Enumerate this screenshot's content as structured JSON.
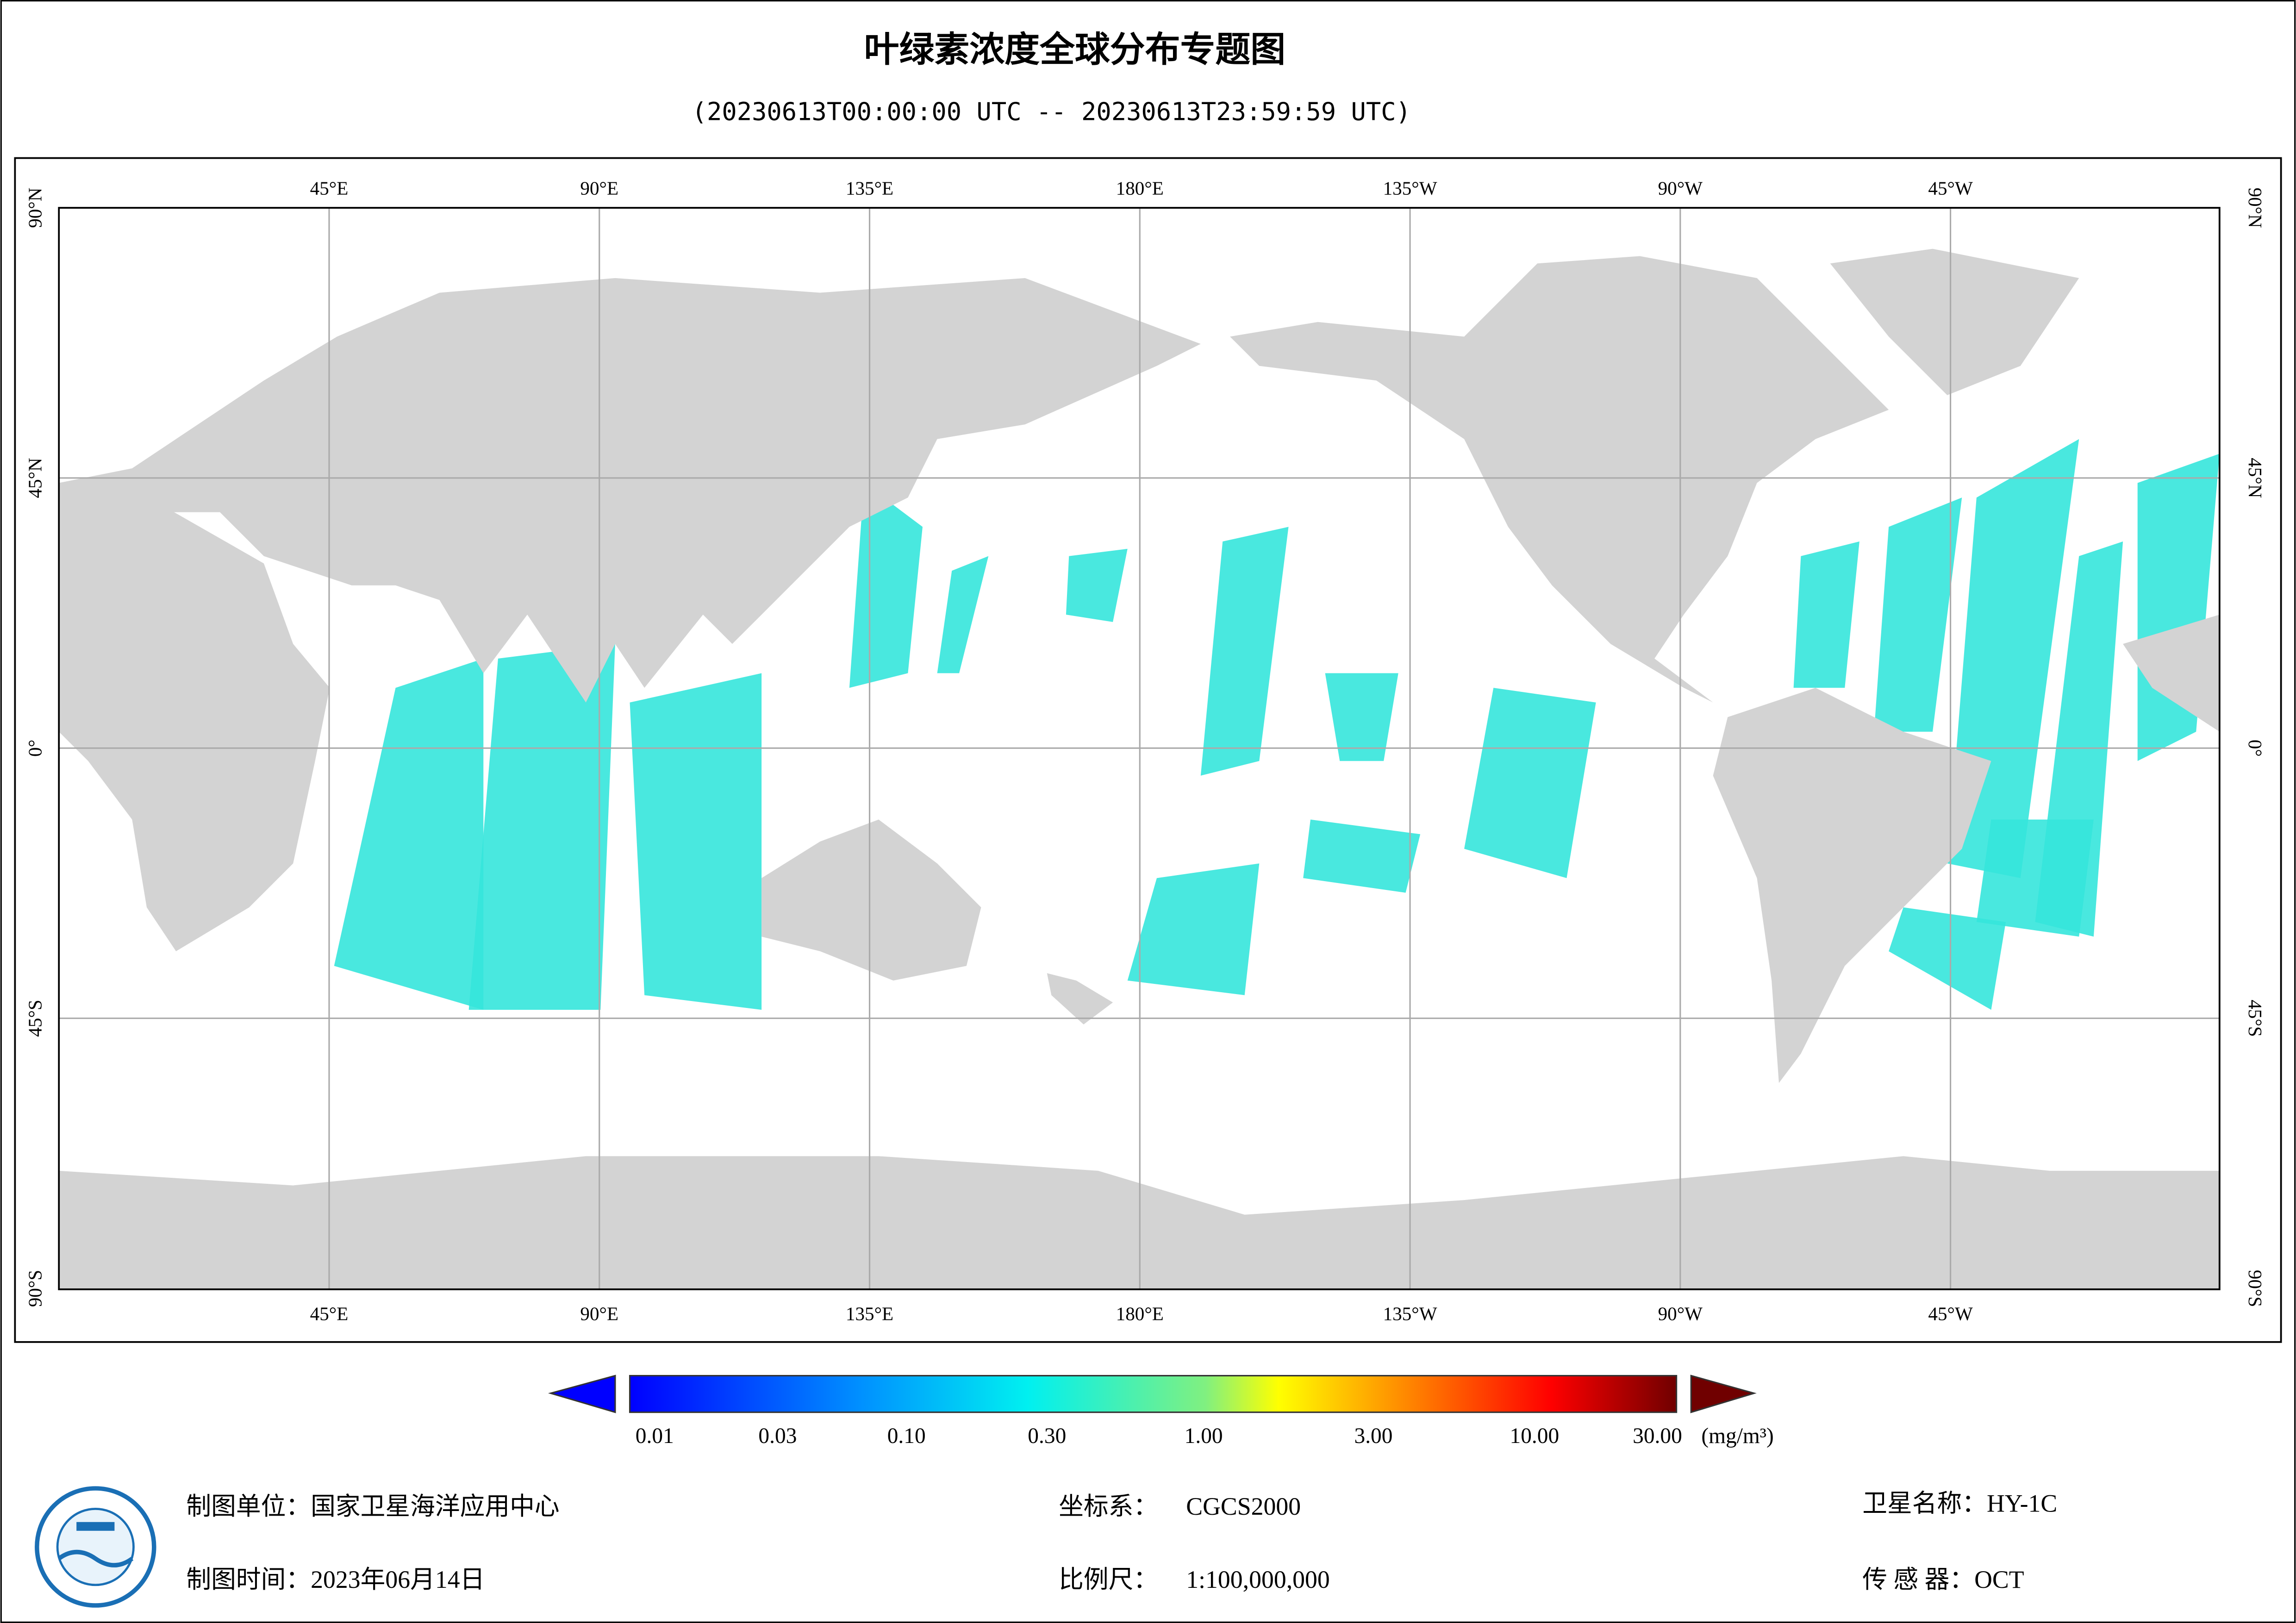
{
  "header": {
    "title": "叶绿素浓度全球分布专题图",
    "subtitle": "(20230613T00:00:00 UTC -- 20230613T23:59:59 UTC)"
  },
  "map": {
    "lon_labels": [
      "45°E",
      "90°E",
      "135°E",
      "180°E",
      "135°W",
      "90°W",
      "45°W"
    ],
    "lat_labels": [
      "90°N",
      "45°N",
      "0°",
      "45°S",
      "90°S"
    ]
  },
  "colorbar": {
    "labels": [
      "0.01",
      "0.03",
      "0.10",
      "0.30",
      "1.00",
      "3.00",
      "10.00",
      "30.00"
    ],
    "unit": "(mg/m³)"
  },
  "footer": {
    "items": [
      {
        "label": "制图单位：",
        "value": "国家卫星海洋应用中心"
      },
      {
        "label": "制图时间：",
        "value": "2023年06月14日"
      },
      {
        "label": "坐标系：",
        "value": "CGCS2000"
      },
      {
        "label": "比例尺：",
        "value": "1:100,000,000"
      },
      {
        "label": "卫星名称：",
        "value": "HY-1C"
      },
      {
        "label": "传 感 器：",
        "value": "OCT"
      }
    ]
  }
}
